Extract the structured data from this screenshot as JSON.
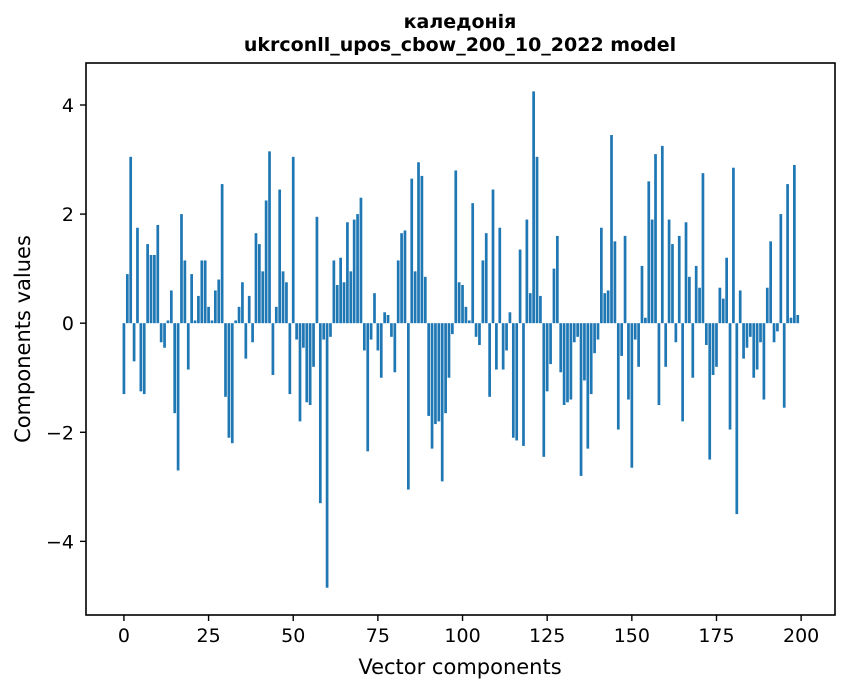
{
  "chart_data": {
    "type": "bar",
    "title": "каледонія",
    "subtitle": "ukrconll_upos_cbow_200_10_2022 model",
    "xlabel": "Vector components",
    "ylabel": "Components values",
    "bar_color": "#1f77b4",
    "axis_color": "#000000",
    "grid": false,
    "legend": false,
    "n_components": 200,
    "x_is_index": true,
    "xticks": [
      0,
      25,
      50,
      75,
      100,
      125,
      150,
      175,
      200
    ],
    "yticks": [
      4,
      2,
      0,
      -2,
      -4
    ],
    "ytick_labels": [
      "4",
      "2",
      "0",
      "−2",
      "−4"
    ],
    "xlim": [
      -11.2,
      210
    ],
    "ylim": [
      -5.35,
      4.77
    ],
    "values": [
      -1.3,
      0.9,
      3.05,
      -0.7,
      1.75,
      -1.25,
      -1.3,
      1.45,
      1.25,
      1.25,
      1.8,
      -0.35,
      -0.45,
      0.05,
      0.6,
      -1.65,
      -2.7,
      2.0,
      1.15,
      -0.85,
      0.9,
      0.05,
      0.5,
      1.15,
      1.15,
      0.3,
      0.05,
      0.6,
      0.8,
      2.55,
      -1.35,
      -2.1,
      -2.2,
      0.05,
      0.3,
      0.75,
      -0.65,
      0.5,
      -0.35,
      1.65,
      1.45,
      0.95,
      2.25,
      3.15,
      -0.95,
      0.3,
      2.45,
      0.95,
      0.75,
      -1.3,
      3.05,
      -0.3,
      -1.8,
      -0.45,
      -1.45,
      -1.5,
      -0.8,
      1.95,
      -3.3,
      -0.3,
      -4.85,
      -0.25,
      1.15,
      0.7,
      1.2,
      0.75,
      1.85,
      0.95,
      1.9,
      2.0,
      2.3,
      -0.5,
      -2.35,
      -0.3,
      0.55,
      -0.5,
      -1.0,
      0.2,
      0.15,
      -0.25,
      -0.9,
      1.15,
      1.65,
      1.7,
      -3.05,
      2.65,
      0.95,
      2.95,
      2.7,
      0.85,
      -1.7,
      -2.3,
      -1.85,
      -1.8,
      -2.9,
      -1.65,
      -1.0,
      -0.2,
      2.8,
      0.75,
      0.7,
      0.3,
      0.05,
      2.2,
      -0.25,
      -0.4,
      1.15,
      1.65,
      -1.35,
      2.45,
      -0.85,
      1.75,
      -0.85,
      -0.5,
      0.2,
      -2.1,
      -2.15,
      1.35,
      -2.25,
      1.9,
      0.55,
      4.25,
      3.05,
      0.5,
      -2.45,
      -1.25,
      -0.75,
      1.0,
      1.6,
      -0.9,
      -1.5,
      -1.45,
      -1.4,
      -0.35,
      -0.25,
      -2.8,
      -1.05,
      -2.3,
      -1.3,
      -0.55,
      -0.3,
      1.75,
      0.55,
      0.6,
      3.45,
      1.5,
      -1.95,
      -0.6,
      1.6,
      -1.4,
      -2.65,
      -0.3,
      -0.8,
      1.05,
      0.1,
      2.6,
      1.9,
      3.1,
      -1.5,
      3.25,
      -0.8,
      1.9,
      1.45,
      -0.35,
      1.6,
      -1.8,
      1.85,
      0.85,
      -1.0,
      1.05,
      0.65,
      2.75,
      -0.4,
      -2.5,
      -0.95,
      -0.8,
      0.65,
      0.45,
      1.2,
      -1.95,
      2.85,
      -3.5,
      0.6,
      -0.65,
      -0.45,
      -0.25,
      -1.0,
      -0.85,
      -0.35,
      -1.4,
      0.65,
      1.5,
      -0.35,
      -0.15,
      2.0,
      -1.55,
      2.55,
      0.1,
      2.9,
      0.15
    ]
  }
}
